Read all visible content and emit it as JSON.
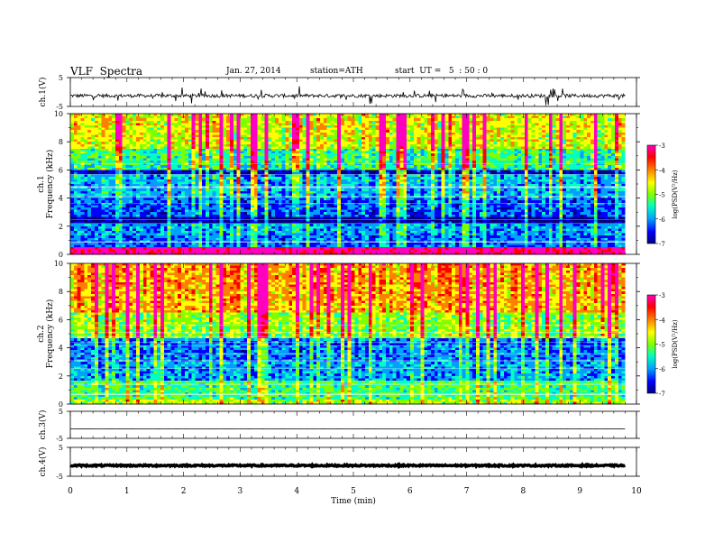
{
  "header": {
    "title": "VLF  Spectra",
    "date": "Jan. 27, 2014",
    "station": "station=ATH",
    "start": "start  UT =   5  : 50 : 0"
  },
  "time_axis": {
    "label": "Time  (min)",
    "ticks": [
      "0",
      "1",
      "2",
      "3",
      "4",
      "5",
      "6",
      "7",
      "8",
      "9",
      "10"
    ],
    "range": [
      0,
      10
    ],
    "data_end": 9.8
  },
  "colorbar": {
    "label": "log(PSD(V²/Hz)",
    "ticks": [
      "-3",
      "-4",
      "-5",
      "-6",
      "-7"
    ],
    "range": [
      -7,
      -3
    ],
    "colormap": [
      "#000080",
      "#0000ff",
      "#00a0ff",
      "#00ffc0",
      "#80ff00",
      "#ffff00",
      "#ff8000",
      "#ff0000",
      "#ff00c0"
    ]
  },
  "chart_data": [
    {
      "type": "line",
      "panel": "ch1-waveform",
      "ylabel": "ch.1(V)",
      "ytick_labels": [
        "5",
        "-5"
      ],
      "ylim": [
        -5,
        5
      ],
      "x_range": [
        0,
        9.8
      ],
      "mean_level": -1.3,
      "noise_amplitude": 0.6,
      "description_of_trace": "continuous noisy trace with frequent spikes"
    },
    {
      "type": "heatmap",
      "panel": "ch1-spectrogram",
      "ylabel_channel": "ch.1",
      "ylabel": "Frequency  (kHz)",
      "ytick_labels": [
        "0",
        "2",
        "4",
        "6",
        "8",
        "10"
      ],
      "ylim": [
        0,
        10
      ],
      "x_range": [
        0,
        9.8
      ],
      "level_profile": [
        {
          "from_khz": 0,
          "to_khz": 0.5,
          "log_psd": -3.4
        },
        {
          "from_khz": 0.5,
          "to_khz": 1.3,
          "log_psd": -6.2
        },
        {
          "from_khz": 1.3,
          "to_khz": 2.2,
          "log_psd": -6.0
        },
        {
          "from_khz": 2.2,
          "to_khz": 2.6,
          "log_psd": -7.0
        },
        {
          "from_khz": 2.6,
          "to_khz": 4.0,
          "log_psd": -6.3
        },
        {
          "from_khz": 4.0,
          "to_khz": 5.6,
          "log_psd": -6.0
        },
        {
          "from_khz": 5.6,
          "to_khz": 6.0,
          "log_psd": -6.8
        },
        {
          "from_khz": 6.0,
          "to_khz": 7.5,
          "log_psd": -5.6
        },
        {
          "from_khz": 7.5,
          "to_khz": 10,
          "log_psd": -5.0
        }
      ]
    },
    {
      "type": "heatmap",
      "panel": "ch2-spectrogram",
      "ylabel_channel": "ch.2",
      "ylabel": "Frequency  (kHz)",
      "ytick_labels": [
        "0",
        "2",
        "4",
        "6",
        "8",
        "10"
      ],
      "ylim": [
        0,
        10
      ],
      "x_range": [
        0,
        9.8
      ],
      "level_profile": [
        {
          "from_khz": 0,
          "to_khz": 0.3,
          "log_psd": -5.0
        },
        {
          "from_khz": 0.3,
          "to_khz": 1.6,
          "log_psd": -5.4
        },
        {
          "from_khz": 1.6,
          "to_khz": 3.0,
          "log_psd": -6.0
        },
        {
          "from_khz": 3.0,
          "to_khz": 4.6,
          "log_psd": -6.2
        },
        {
          "from_khz": 4.6,
          "to_khz": 6.5,
          "log_psd": -5.2
        },
        {
          "from_khz": 6.5,
          "to_khz": 10,
          "log_psd": -4.6
        }
      ]
    },
    {
      "type": "line",
      "panel": "ch3-waveform",
      "ylabel": "ch.3(V)",
      "ytick_labels": [
        "5",
        "-5"
      ],
      "ylim": [
        -5,
        5
      ],
      "x_range": [
        0,
        9.8
      ],
      "mean_level": -1.5,
      "noise_amplitude": 0.05
    },
    {
      "type": "line",
      "panel": "ch4-waveform",
      "ylabel": "ch.4(V)",
      "ytick_labels": [
        "5",
        "-5"
      ],
      "ylim": [
        -5,
        5
      ],
      "x_range": [
        0,
        9.8
      ],
      "mean_level": -1.3,
      "noise_amplitude": 0.25
    }
  ]
}
